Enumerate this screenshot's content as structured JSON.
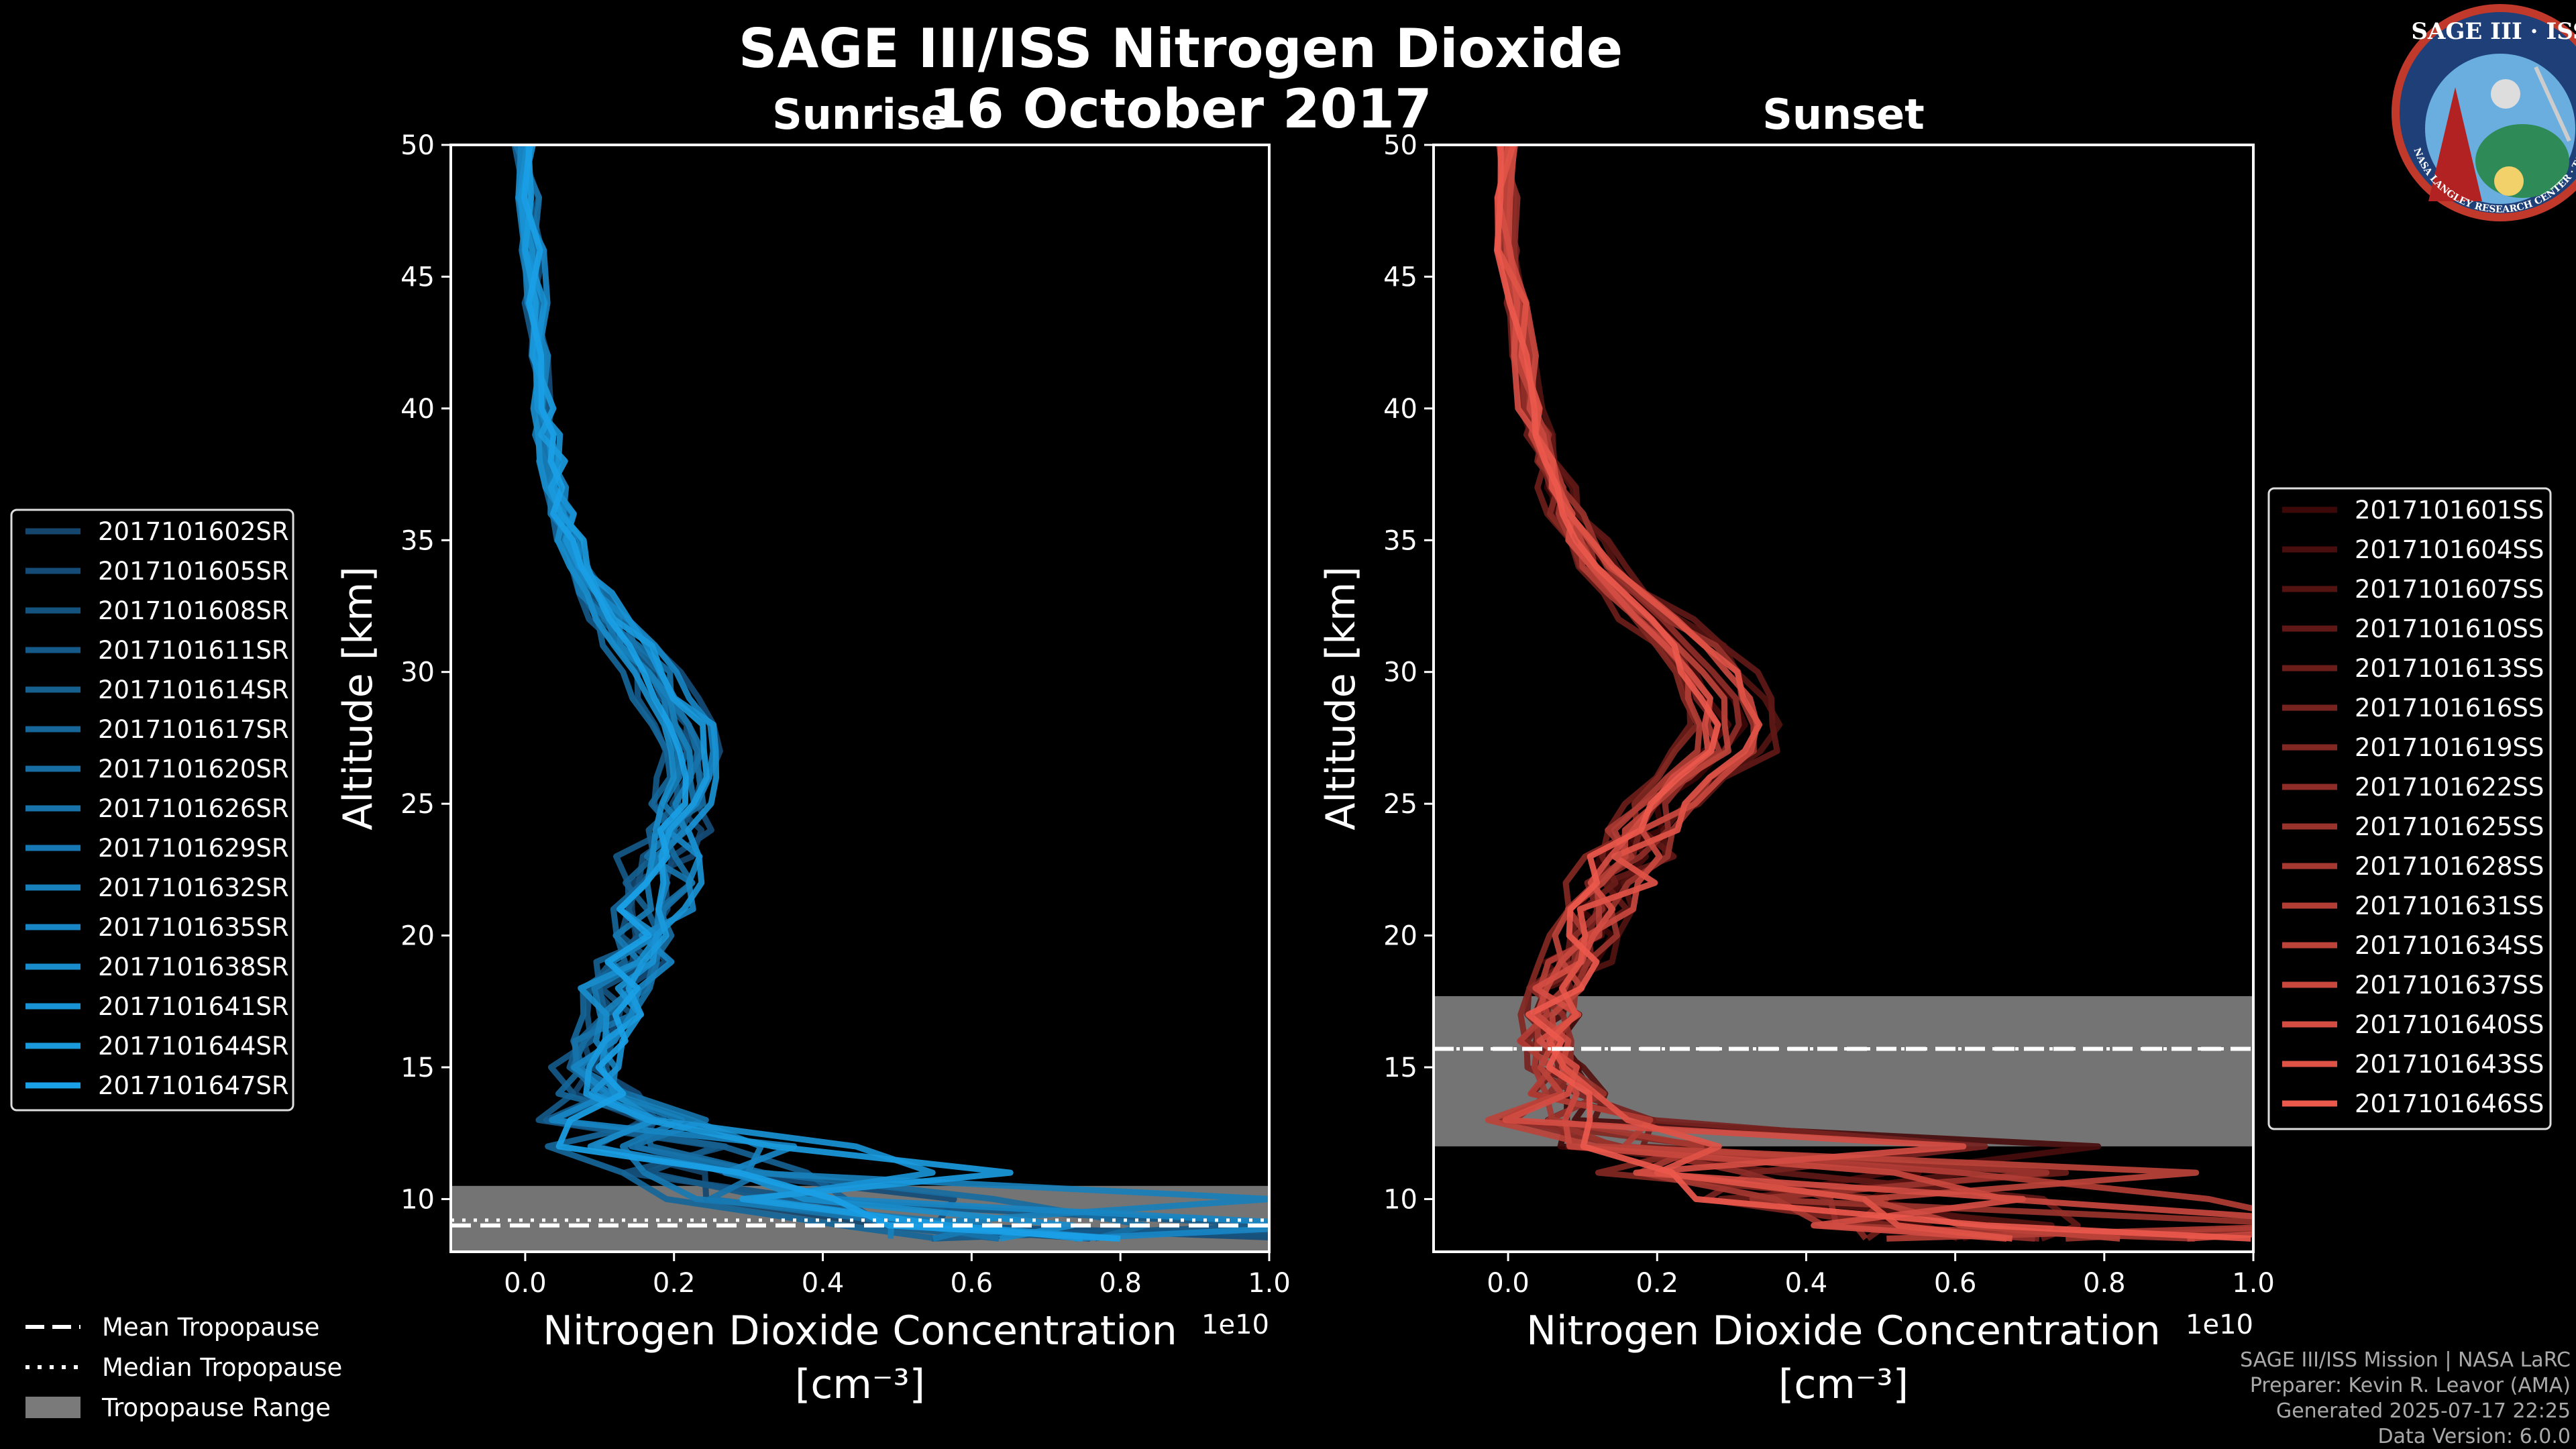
{
  "title": "SAGE III/ISS Nitrogen Dioxide",
  "date": "16 October 2017",
  "logo": {
    "text": "SAGE III · ISS",
    "ring_text": "BALL · NASA LANGLEY RESEARCH CENTER · TAS-I · ESA"
  },
  "colors": {
    "sunrise": "#1a9de0",
    "sunset": "#e8584a",
    "tropopause_range": "#7a7a7a",
    "background": "#000000"
  },
  "chart_data": [
    {
      "type": "line",
      "title": "Sunrise",
      "xlabel": "Nitrogen Dioxide Concentration",
      "xlabel_unit": "[cm⁻³]",
      "ylabel": "Altitude [km]",
      "x_exponent_label": "1e10",
      "xlim": [
        -0.1,
        1.0
      ],
      "ylim": [
        8,
        50
      ],
      "xticks": [
        "0.0",
        "0.2",
        "0.4",
        "0.6",
        "0.8",
        "1.0"
      ],
      "yticks": [
        "10",
        "15",
        "20",
        "25",
        "30",
        "35",
        "40",
        "45",
        "50"
      ],
      "xtick_values": [
        0.0,
        0.2,
        0.4,
        0.6,
        0.8,
        1.0
      ],
      "ytick_values": [
        10,
        15,
        20,
        25,
        30,
        35,
        40,
        45,
        50
      ],
      "legend_position": "left",
      "series_names": [
        "2017101602SR",
        "2017101605SR",
        "2017101608SR",
        "2017101611SR",
        "2017101614SR",
        "2017101617SR",
        "2017101620SR",
        "2017101626SR",
        "2017101629SR",
        "2017101632SR",
        "2017101635SR",
        "2017101638SR",
        "2017101641SR",
        "2017101644SR",
        "2017101647SR"
      ],
      "profile_altitudes": [
        8.5,
        9,
        10,
        11,
        12,
        13,
        14,
        15,
        16,
        17,
        18,
        19,
        20,
        21,
        22,
        23,
        24,
        25,
        26,
        27,
        28,
        29,
        30,
        31,
        32,
        33,
        34,
        35,
        36,
        37,
        38,
        39,
        40,
        42,
        44,
        46,
        48,
        50
      ],
      "mean_profile_concentration": [
        0.6,
        0.5,
        0.35,
        0.22,
        0.15,
        0.12,
        0.1,
        0.09,
        0.1,
        0.11,
        0.12,
        0.14,
        0.15,
        0.17,
        0.18,
        0.19,
        0.2,
        0.21,
        0.22,
        0.22,
        0.21,
        0.19,
        0.17,
        0.14,
        0.11,
        0.09,
        0.07,
        0.06,
        0.05,
        0.04,
        0.035,
        0.03,
        0.025,
        0.02,
        0.015,
        0.01,
        0.005,
        0.0
      ],
      "tropopause": {
        "mean": 9.0,
        "median": 9.2,
        "range": [
          8.0,
          10.5
        ]
      }
    },
    {
      "type": "line",
      "title": "Sunset",
      "xlabel": "Nitrogen Dioxide Concentration",
      "xlabel_unit": "[cm⁻³]",
      "ylabel": "Altitude [km]",
      "x_exponent_label": "1e10",
      "xlim": [
        -0.1,
        1.0
      ],
      "ylim": [
        8,
        50
      ],
      "xticks": [
        "0.0",
        "0.2",
        "0.4",
        "0.6",
        "0.8",
        "1.0"
      ],
      "yticks": [
        "10",
        "15",
        "20",
        "25",
        "30",
        "35",
        "40",
        "45",
        "50"
      ],
      "xtick_values": [
        0.0,
        0.2,
        0.4,
        0.6,
        0.8,
        1.0
      ],
      "ytick_values": [
        10,
        15,
        20,
        25,
        30,
        35,
        40,
        45,
        50
      ],
      "legend_position": "right",
      "series_names": [
        "2017101601SS",
        "2017101604SS",
        "2017101607SS",
        "2017101610SS",
        "2017101613SS",
        "2017101616SS",
        "2017101619SS",
        "2017101622SS",
        "2017101625SS",
        "2017101628SS",
        "2017101631SS",
        "2017101634SS",
        "2017101637SS",
        "2017101640SS",
        "2017101643SS",
        "2017101646SS"
      ],
      "profile_altitudes": [
        8.5,
        9,
        10,
        11,
        12,
        13,
        14,
        15,
        16,
        17,
        18,
        19,
        20,
        21,
        22,
        23,
        24,
        25,
        26,
        27,
        28,
        29,
        30,
        31,
        32,
        33,
        34,
        35,
        36,
        37,
        38,
        39,
        40,
        42,
        44,
        46,
        48,
        50
      ],
      "mean_profile_concentration": [
        0.7,
        0.55,
        0.4,
        0.25,
        0.15,
        0.1,
        0.08,
        0.06,
        0.05,
        0.06,
        0.07,
        0.09,
        0.1,
        0.12,
        0.14,
        0.16,
        0.18,
        0.21,
        0.25,
        0.29,
        0.3,
        0.29,
        0.27,
        0.24,
        0.2,
        0.16,
        0.13,
        0.1,
        0.08,
        0.065,
        0.05,
        0.04,
        0.03,
        0.02,
        0.01,
        0.0,
        0.0,
        0.0
      ],
      "tropopause": {
        "mean": 15.7,
        "median": 15.7,
        "range": [
          12.0,
          17.7
        ]
      }
    }
  ],
  "legend_common": [
    {
      "label": "Mean Tropopause",
      "style": "dashed"
    },
    {
      "label": "Median Tropopause",
      "style": "dotted"
    },
    {
      "label": "Tropopause Range",
      "style": "patch"
    }
  ],
  "footer": [
    "SAGE III/ISS Mission | NASA LaRC",
    "Preparer: Kevin R. Leavor (AMA)",
    "Generated 2025-07-17 22:25",
    "Data Version: 6.0.0"
  ]
}
